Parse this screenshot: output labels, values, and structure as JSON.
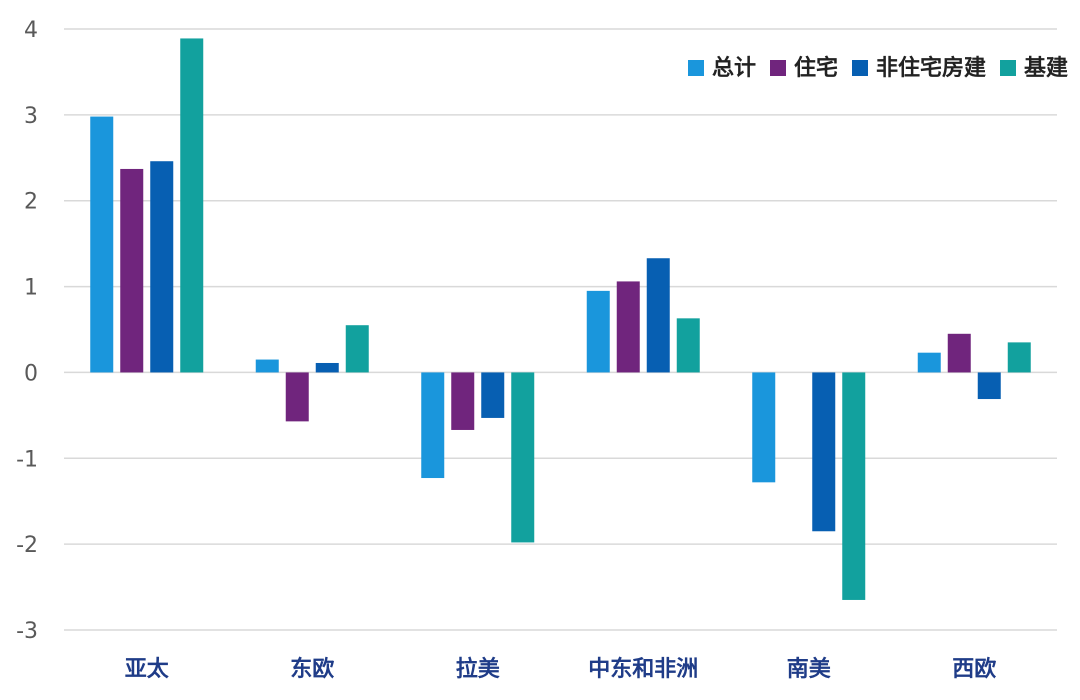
{
  "chart_data": {
    "type": "bar",
    "categories": [
      "亚太",
      "东欧",
      "拉美",
      "中东和非洲",
      "南美",
      "西欧"
    ],
    "series": [
      {
        "name": "总计",
        "color": "#1a96dc",
        "values": [
          2.98,
          0.15,
          -1.23,
          0.95,
          -1.28,
          0.23
        ]
      },
      {
        "name": "住宅",
        "color": "#70257d",
        "values": [
          2.37,
          -0.57,
          -0.67,
          1.06,
          null,
          0.45
        ]
      },
      {
        "name": "非住宅房建",
        "color": "#075fb2",
        "values": [
          2.46,
          0.11,
          -0.53,
          1.33,
          -1.85,
          -0.31
        ]
      },
      {
        "name": "基建",
        "color": "#12a19e",
        "values": [
          3.89,
          0.55,
          -1.98,
          0.63,
          -2.65,
          0.35
        ]
      }
    ],
    "yticks": [
      4,
      3,
      2,
      1,
      0,
      -1,
      -2,
      -3
    ],
    "ylim": [
      -3,
      4
    ],
    "grid": true,
    "legend_position": "top-right"
  }
}
